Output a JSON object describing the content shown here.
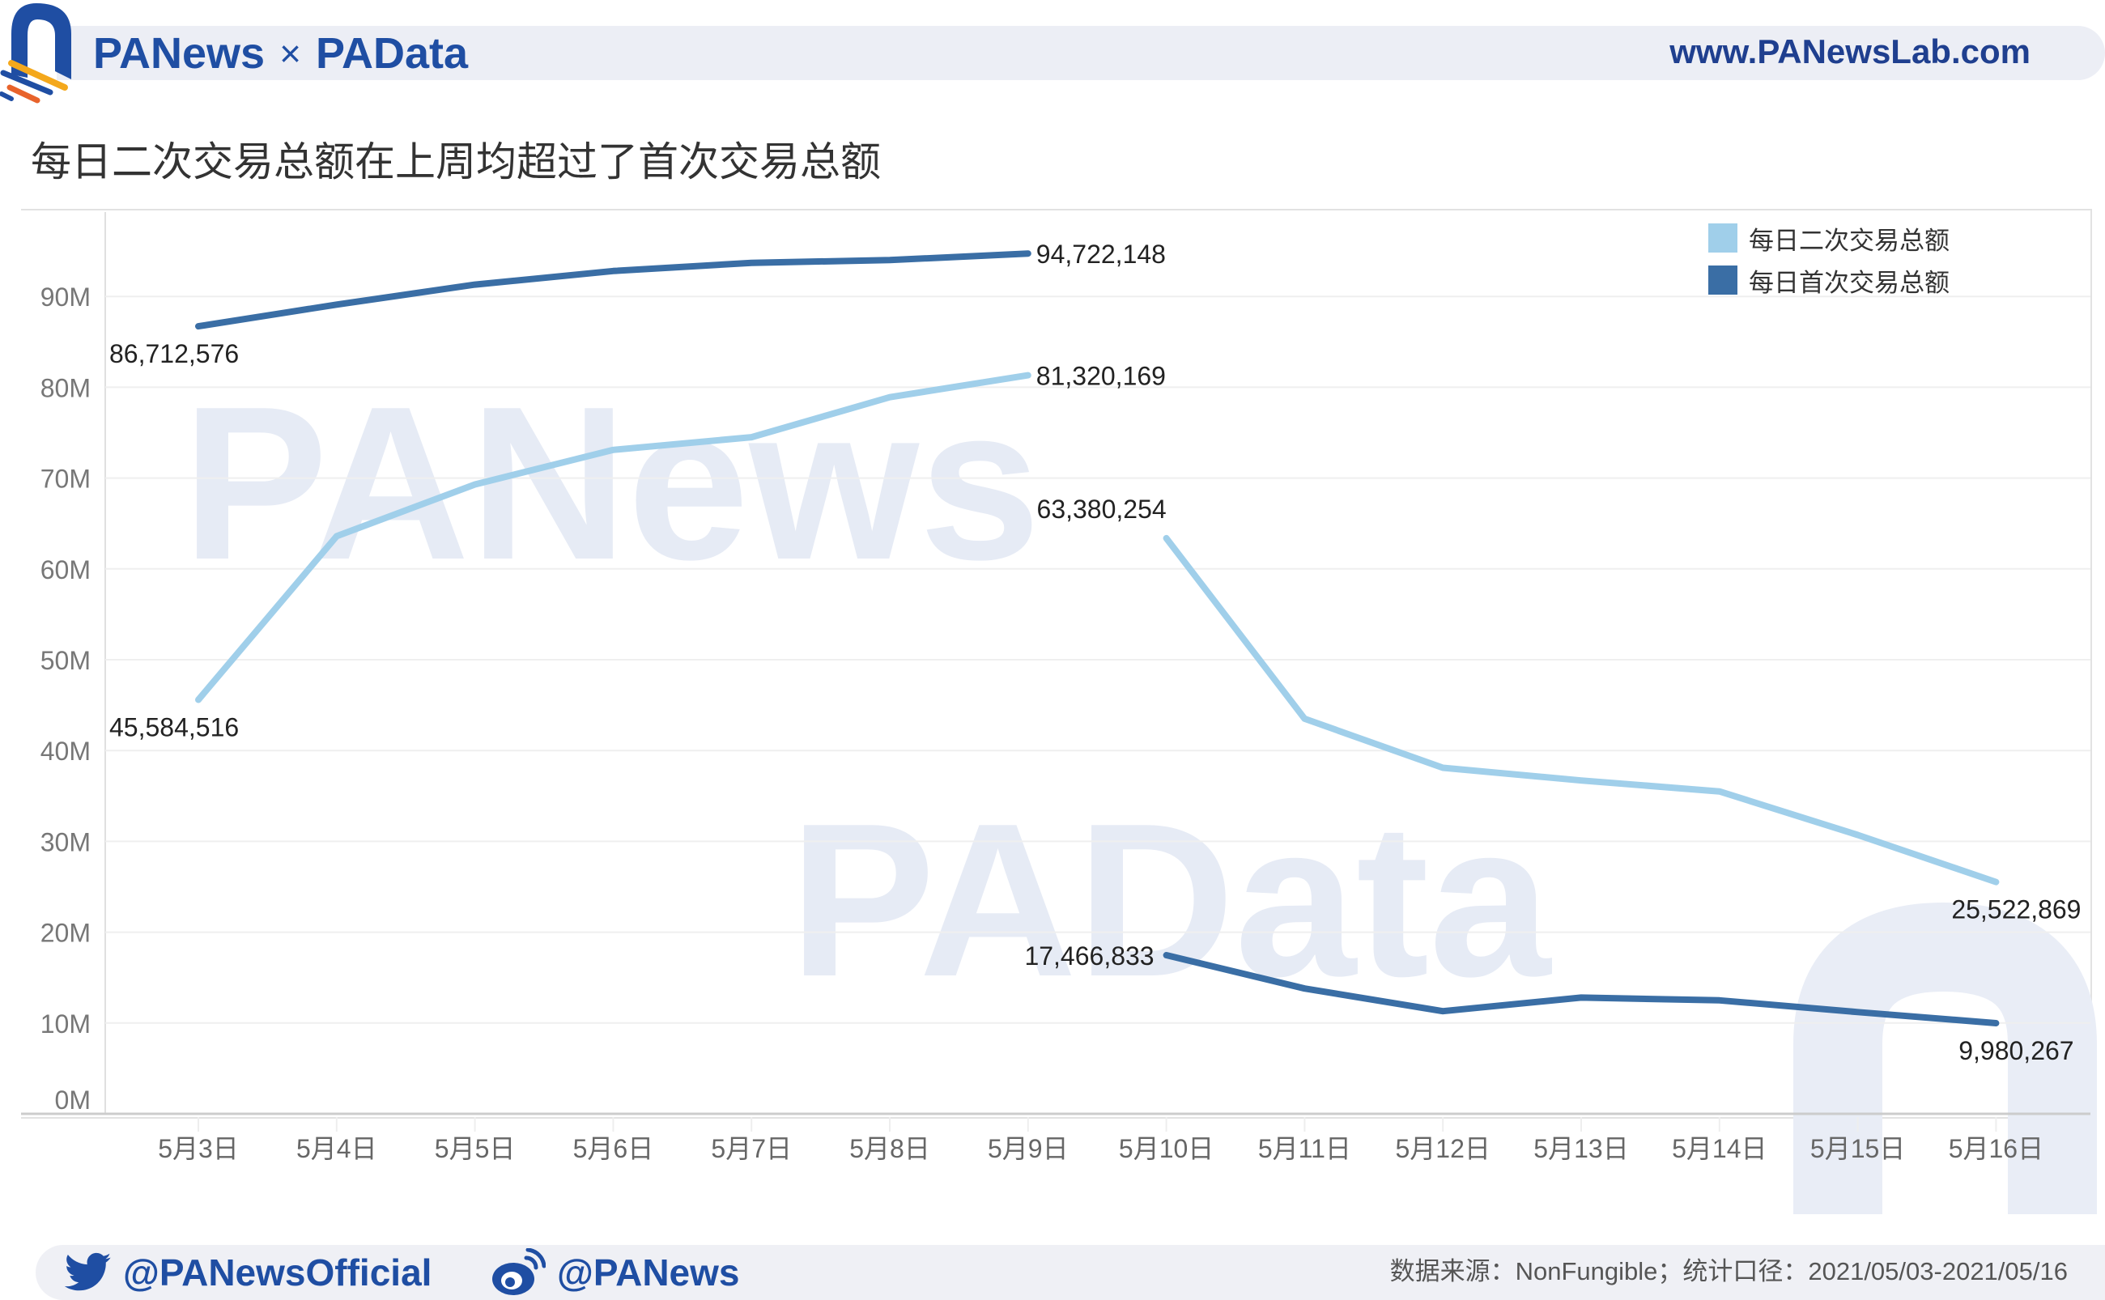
{
  "header": {
    "brand_left": "PANews",
    "brand_separator": "×",
    "brand_right": "PAData",
    "site_url": "www.PANewsLab.com"
  },
  "title": "每日二次交易总额在上周均超过了首次交易总额",
  "legend": {
    "items": [
      {
        "label": "每日二次交易总额",
        "color": "#a0cfea"
      },
      {
        "label": "每日首次交易总额",
        "color": "#3a6ea5"
      }
    ]
  },
  "watermarks": {
    "top": "PANews",
    "bottom": "PAData"
  },
  "footer": {
    "twitter": "@PANewsOfficial",
    "weibo": "@PANews",
    "source": "数据来源：NonFungible；统计口径：2021/05/03-2021/05/16"
  },
  "colors": {
    "secondary_line": "#a0cfea",
    "primary_line": "#3a6ea5",
    "brand_blue": "#1f4ea3",
    "brand_orange": "#e8632b",
    "brand_yellow": "#f4a81c"
  },
  "chart_data": {
    "type": "line",
    "title": "每日二次交易总额在上周均超过了首次交易总额",
    "xlabel": "",
    "ylabel": "",
    "ylim": [
      0,
      100000000
    ],
    "yticks": [
      "0M",
      "10M",
      "20M",
      "30M",
      "40M",
      "50M",
      "60M",
      "70M",
      "80M",
      "90M"
    ],
    "grid": true,
    "legend_position": "top-right",
    "categories": [
      "5月3日",
      "5月4日",
      "5月5日",
      "5月6日",
      "5月7日",
      "5月8日",
      "5月9日",
      "5月10日",
      "5月11日",
      "5月12日",
      "5月13日",
      "5月14日",
      "5月15日",
      "5月16日"
    ],
    "segments_break_between": [
      "5月9日",
      "5月10日"
    ],
    "series": [
      {
        "name": "每日二次交易总额",
        "color": "#a0cfea",
        "values": [
          45584516,
          63600000,
          69300000,
          73100000,
          74500000,
          78900000,
          81320169,
          63380254,
          43500000,
          38100000,
          36700000,
          35500000,
          30700000,
          25522869
        ],
        "labels": {
          "0": "45,584,516",
          "6": "81,320,169",
          "7": "63,380,254",
          "13": "25,522,869"
        }
      },
      {
        "name": "每日首次交易总额",
        "color": "#3a6ea5",
        "values": [
          86712576,
          89100000,
          91300000,
          92800000,
          93700000,
          94000000,
          94722148,
          17466833,
          13800000,
          11300000,
          12800000,
          12500000,
          11200000,
          9980267
        ],
        "labels": {
          "0": "86,712,576",
          "6": "94,722,148",
          "7": "17,466,833",
          "13": "9,980,267"
        }
      }
    ]
  }
}
